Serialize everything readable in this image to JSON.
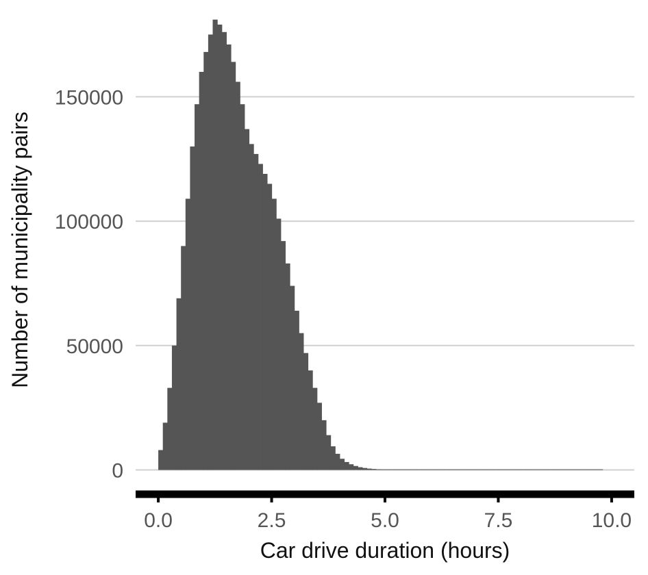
{
  "chart_data": {
    "type": "bar",
    "title": "",
    "xlabel": "Car drive duration (hours)",
    "ylabel": "Number of municipality pairs",
    "xlim": [
      -0.5,
      10.5
    ],
    "ylim": [
      -7000,
      182000
    ],
    "x_ticks": [
      0,
      2.5,
      5,
      7.5,
      10
    ],
    "x_tick_labels": [
      "0.0",
      "2.5",
      "5.0",
      "7.5",
      "10.0"
    ],
    "y_ticks": [
      0,
      50000,
      100000,
      150000
    ],
    "y_tick_labels": [
      "0",
      "50000",
      "100000",
      "150000"
    ],
    "grid": "horizontal",
    "bin_width": 0.1,
    "bin_start": 0.05,
    "values": [
      8000,
      19000,
      33000,
      50000,
      69000,
      90000,
      109000,
      130000,
      147000,
      160000,
      168000,
      175000,
      181000,
      179000,
      176000,
      171000,
      164000,
      156000,
      147000,
      137000,
      131000,
      127000,
      123000,
      119000,
      115000,
      109000,
      101000,
      92000,
      83000,
      74000,
      64000,
      55000,
      47000,
      40000,
      33000,
      27000,
      20000,
      14000,
      9500,
      6500,
      4500,
      3200,
      2300,
      1600,
      1100,
      800,
      550,
      400,
      300,
      220,
      170,
      130,
      100,
      80,
      65,
      55,
      45,
      40,
      35,
      30,
      28,
      25,
      22,
      20,
      18,
      16,
      14,
      12,
      11,
      10,
      9,
      8,
      7,
      6,
      5,
      5,
      4,
      4,
      3,
      3,
      3,
      2,
      2,
      2,
      2,
      2,
      1,
      1,
      1,
      1,
      1,
      1,
      1,
      1,
      1,
      1,
      1,
      1
    ]
  }
}
